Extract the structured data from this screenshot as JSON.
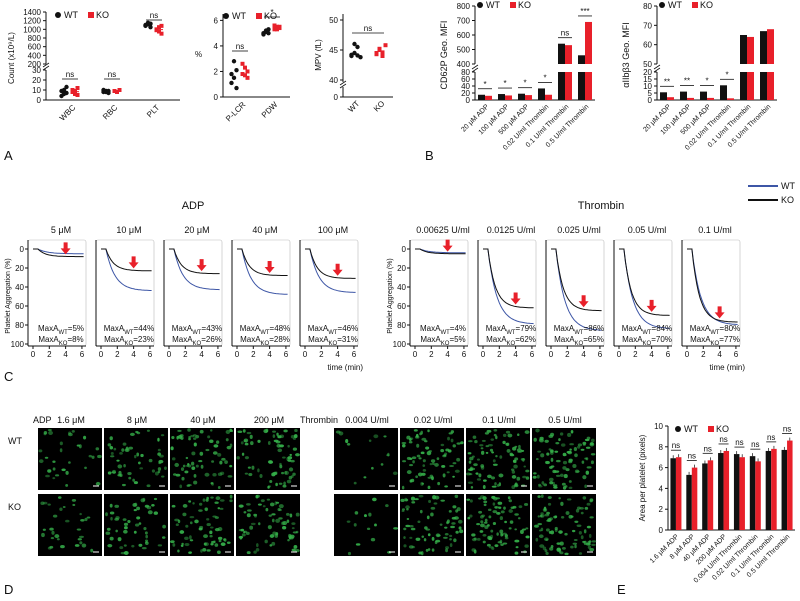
{
  "panel_labels": [
    "A",
    "B",
    "C",
    "D",
    "E"
  ],
  "colors": {
    "wt": "#111111",
    "ko": "#e8202a",
    "wt_trace": "#3d56a6",
    "ko_trace": "#111111",
    "cell": "#35b04a"
  },
  "legend": {
    "wt": "WT",
    "ko": "KO"
  },
  "chart_data": [
    {
      "id": "A1",
      "type": "scatter",
      "ylabel": "Count (x10⁹/L)",
      "yticks_top": [
        "200",
        "400",
        "600",
        "800",
        "1000",
        "1200",
        "1400"
      ],
      "yticks_bottom": [
        "0",
        "10",
        "20",
        "30"
      ],
      "categories": [
        "WBC",
        "RBC",
        "PLT"
      ],
      "series": [
        {
          "name": "WT",
          "values": [
            [
              9,
              6,
              13,
              4,
              10,
              7
            ],
            [
              8,
              9,
              7,
              10,
              8,
              9
            ],
            [
              1100,
              1150,
              1050,
              1080,
              1120,
              1130
            ]
          ]
        },
        {
          "name": "KO",
          "values": [
            [
              10,
              6,
              12,
              8,
              9,
              5
            ],
            [
              9,
              8,
              10,
              9,
              8,
              10
            ],
            [
              980,
              1050,
              900,
              1000,
              950,
              1080
            ]
          ]
        }
      ],
      "sig": [
        "ns",
        "ns",
        "ns"
      ]
    },
    {
      "id": "A2",
      "type": "scatter",
      "ylabel": "%",
      "yticks": [
        "0",
        "2",
        "4",
        "6"
      ],
      "categories": [
        "P-LCR",
        "PDW"
      ],
      "series": [
        {
          "name": "WT",
          "values": [
            [
              1.1,
              1.5,
              2.1,
              1.8,
              2.8,
              0.7
            ],
            [
              5.0,
              5.1,
              5.3,
              4.9,
              5.2,
              5.0
            ]
          ]
        },
        {
          "name": "KO",
          "values": [
            [
              1.8,
              2.3,
              1.5,
              2.6,
              1.7,
              2.0
            ],
            [
              5.3,
              5.5,
              5.4,
              5.6,
              5.3,
              5.5
            ]
          ]
        }
      ],
      "sig": [
        "ns",
        "*"
      ]
    },
    {
      "id": "A3",
      "type": "scatter",
      "ylabel": "MPV (fL)",
      "yticks": [
        "0",
        "40",
        "45",
        "50"
      ],
      "categories": [
        "WT",
        "KO"
      ],
      "series": [
        {
          "name": "WT",
          "values": [
            [
              44.0,
              44.5,
              45.5,
              43.8,
              44.2,
              46.0,
              44.1
            ]
          ]
        },
        {
          "name": "KO",
          "values": [
            [
              44.5,
              45.0,
              44.0,
              45.8,
              44.3,
              45.2,
              44.6
            ]
          ]
        }
      ],
      "sig": [
        "ns"
      ]
    },
    {
      "id": "B1",
      "type": "bar",
      "ylabel": "CD62P Geo. MFI",
      "yticks_top": [
        "400",
        "500",
        "600",
        "700",
        "800"
      ],
      "yticks_bottom": [
        "0",
        "20",
        "40",
        "60",
        "80"
      ],
      "categories": [
        "20 μM ADP",
        "100 μM ADP",
        "500 μM ADP",
        "0.02 U/ml Thrombin",
        "0.1 U/ml Thrombin",
        "0.5 U/ml Thrombin"
      ],
      "series": [
        {
          "name": "WT",
          "values": [
            15,
            17,
            18,
            33,
            540,
            460
          ]
        },
        {
          "name": "KO",
          "values": [
            12,
            13,
            14,
            15,
            530,
            690
          ]
        }
      ],
      "sig": [
        "*",
        "*",
        "*",
        "*",
        "ns",
        "***"
      ]
    },
    {
      "id": "B2",
      "type": "bar",
      "ylabel": "αIIbβ3 Geo. MFI",
      "yticks_top": [
        "50",
        "60",
        "70",
        "80"
      ],
      "yticks_bottom": [
        "0",
        "5",
        "10",
        "15",
        "20"
      ],
      "categories": [
        "20 μM ADP",
        "100 μM ADP",
        "500 μM ADP",
        "0.02 U/ml Thrombin",
        "0.1 U/ml Thrombin",
        "0.5 U/ml Thrombin"
      ],
      "series": [
        {
          "name": "WT",
          "values": [
            5.5,
            6.0,
            6.0,
            10.5,
            65,
            67
          ]
        },
        {
          "name": "KO",
          "values": [
            2.0,
            1.5,
            1.5,
            1.2,
            64,
            68
          ]
        }
      ],
      "sig": [
        "**",
        "**",
        "*",
        "*",
        "",
        ""
      ]
    },
    {
      "id": "C",
      "type": "line",
      "group_titles": [
        "ADP",
        "Thrombin"
      ],
      "ylabel": "Platelet Aggregation (%)",
      "xlabel": "time (min)",
      "yticks": [
        "0",
        "20",
        "40",
        "60",
        "80",
        "100"
      ],
      "xticks": [
        "0",
        "2",
        "4",
        "6"
      ],
      "panels": [
        {
          "group": "ADP",
          "title": "5 μM",
          "max_wt": "5",
          "max_ko": "8"
        },
        {
          "group": "ADP",
          "title": "10 μM",
          "max_wt": "44",
          "max_ko": "23"
        },
        {
          "group": "ADP",
          "title": "20 μM",
          "max_wt": "43",
          "max_ko": "26"
        },
        {
          "group": "ADP",
          "title": "40 μM",
          "max_wt": "48",
          "max_ko": "28"
        },
        {
          "group": "ADP",
          "title": "100 μM",
          "max_wt": "46",
          "max_ko": "31"
        },
        {
          "group": "Thrombin",
          "title": "0.00625 U/ml",
          "max_wt": "4",
          "max_ko": "5"
        },
        {
          "group": "Thrombin",
          "title": "0.0125 U/ml",
          "max_wt": "79",
          "max_ko": "62"
        },
        {
          "group": "Thrombin",
          "title": "0.025 U/ml",
          "max_wt": "86",
          "max_ko": "65"
        },
        {
          "group": "Thrombin",
          "title": "0.05 U/ml",
          "max_wt": "84",
          "max_ko": "70"
        },
        {
          "group": "Thrombin",
          "title": "0.1 U/ml",
          "max_wt": "80",
          "max_ko": "77"
        }
      ]
    },
    {
      "id": "E",
      "type": "bar",
      "ylabel": "Area per platelet (pixels)",
      "yticks": [
        "0",
        "2",
        "4",
        "6",
        "8",
        "10"
      ],
      "categories": [
        "1.6 μM ADP",
        "8 μM ADP",
        "40 μM ADP",
        "200 μM ADP",
        "0.004 U/ml Thrombin",
        "0.02 U/ml Thrombin",
        "0.1 U/ml Thrombin",
        "0.5 U/ml Thrombin"
      ],
      "series": [
        {
          "name": "WT",
          "values": [
            6.9,
            5.3,
            6.4,
            7.4,
            7.3,
            7.1,
            7.6,
            7.7
          ]
        },
        {
          "name": "KO",
          "values": [
            7.0,
            6.0,
            6.7,
            7.6,
            7.0,
            6.6,
            7.8,
            8.6
          ]
        }
      ],
      "sig": [
        "ns",
        "ns",
        "ns",
        "ns",
        "ns",
        "ns",
        "ns",
        "ns"
      ]
    }
  ],
  "panel_d": {
    "adp_label": "ADP",
    "thrombin_label": "Thrombin",
    "adp_conc": [
      "1.6 μM",
      "8 μM",
      "40 μM",
      "200 μM"
    ],
    "thrombin_conc": [
      "0.004 U/ml",
      "0.02 U/ml",
      "0.1 U/ml",
      "0.5 U/ml"
    ],
    "row_labels": [
      "WT",
      "KO"
    ],
    "density": [
      [
        0.35,
        0.55,
        0.75,
        0.75,
        0.15,
        0.8,
        0.95,
        0.95
      ],
      [
        0.35,
        0.55,
        0.75,
        0.75,
        0.15,
        0.8,
        0.95,
        0.95
      ]
    ]
  }
}
